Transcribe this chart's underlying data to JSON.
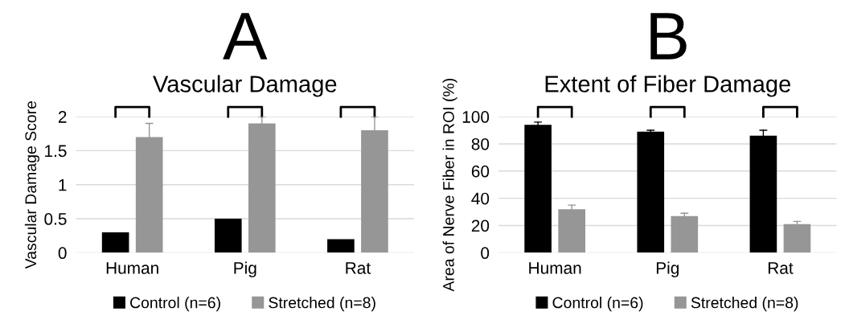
{
  "chart_data": [
    {
      "type": "bar",
      "title": "Vascular Damage",
      "ylabel": "Vascular Damage Score",
      "annotations": [
        "A"
      ],
      "categories": [
        "Human",
        "Pig",
        "Rat"
      ],
      "series": [
        {
          "name": "Control (n=6)",
          "color": "#000000",
          "values": [
            0.3,
            0.5,
            0.2
          ]
        },
        {
          "name": "Stretched (n=8)",
          "color": "#969696",
          "values": [
            1.7,
            1.9,
            1.8
          ],
          "errors": [
            0.2,
            0.1,
            0.2
          ]
        }
      ],
      "ylim": [
        0,
        2
      ],
      "yticks": [
        0,
        0.5,
        1,
        1.5,
        2
      ],
      "grid": "y",
      "legend": "bottom"
    },
    {
      "type": "bar",
      "title": "Extent of Fiber Damage",
      "ylabel": "Area of Nerve Fiber in ROI (%)",
      "annotations": [
        "B"
      ],
      "categories": [
        "Human",
        "Pig",
        "Rat"
      ],
      "series": [
        {
          "name": "Control (n=6)",
          "color": "#000000",
          "values": [
            94,
            89,
            86
          ],
          "errors": [
            2,
            1,
            4
          ]
        },
        {
          "name": "Stretched (n=8)",
          "color": "#969696",
          "values": [
            32,
            27,
            21
          ],
          "errors": [
            3,
            2,
            2
          ]
        }
      ],
      "ylim": [
        0,
        100
      ],
      "yticks": [
        0,
        20,
        40,
        60,
        80,
        100
      ],
      "grid": "y",
      "legend": "bottom"
    }
  ]
}
